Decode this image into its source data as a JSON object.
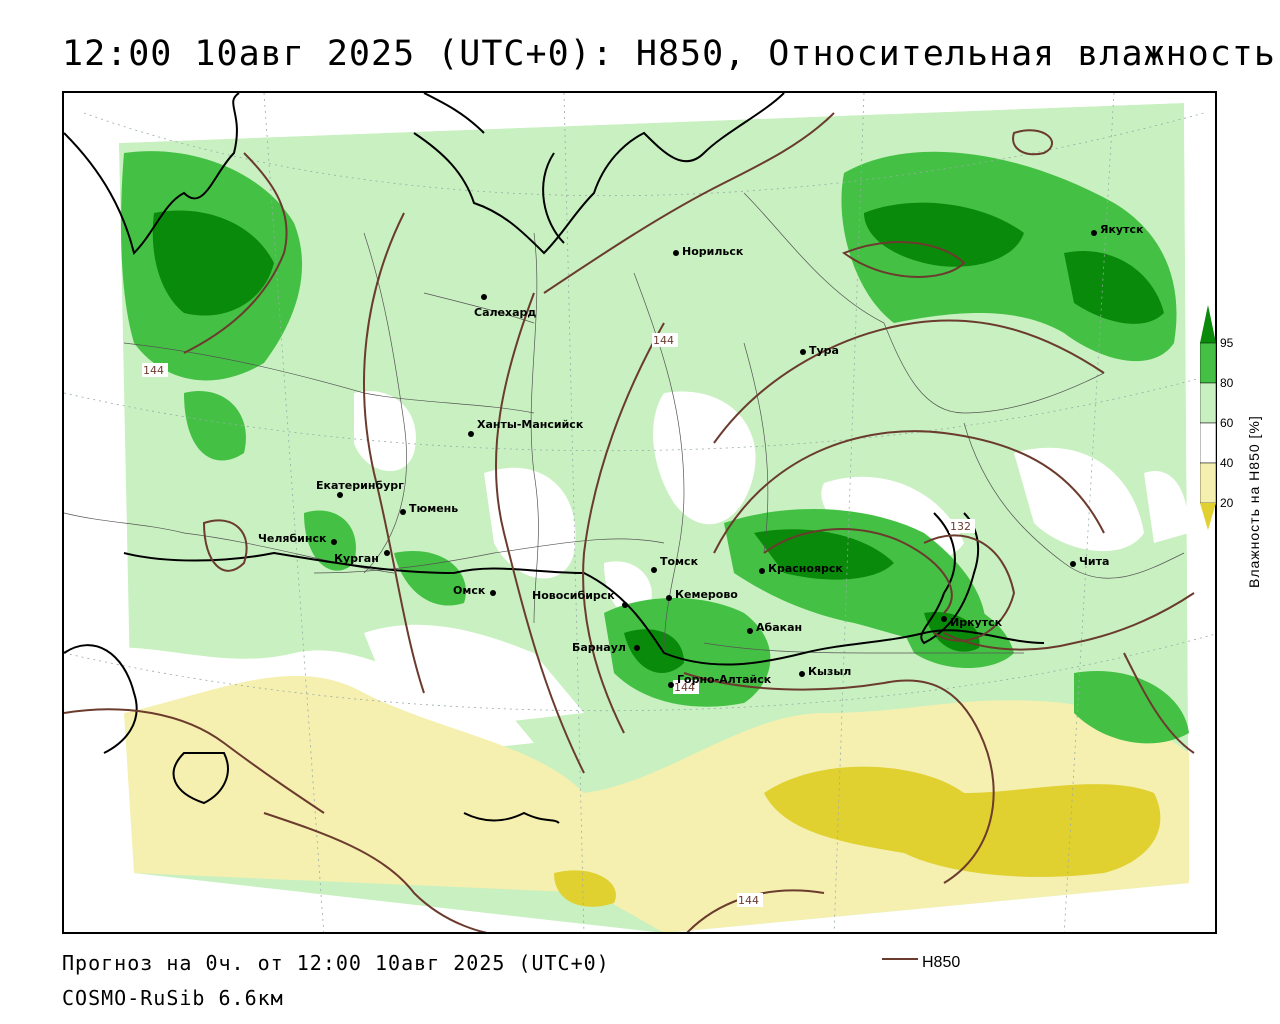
{
  "title": "12:00 10авг 2025 (UTC+0): H850, Относительная влажность",
  "footer": {
    "forecast": "Прогноз на 0ч. от 12:00 10авг 2025 (UTC+0)",
    "model": "COSMO-RuSib 6.6км"
  },
  "legend": {
    "line_label": "H850",
    "line_color": "#6b3b2e"
  },
  "colorbar": {
    "title": "Влажность на H850 [%]",
    "ticks": [
      "95",
      "80",
      "60",
      "40",
      "20"
    ],
    "colors": {
      "c95": "#0a8a0a",
      "c80": "#44c144",
      "c60": "#c8f0c0",
      "c40": "#ffffff",
      "c20": "#f5f0b0",
      "c0": "#e0d030"
    }
  },
  "cities": [
    {
      "name": "Норильск"
    },
    {
      "name": "Якутск"
    },
    {
      "name": "Салехард"
    },
    {
      "name": "Тура"
    },
    {
      "name": "Ханты-Мансийск"
    },
    {
      "name": "Екатеринбург"
    },
    {
      "name": "Тюмень"
    },
    {
      "name": "Челябинск"
    },
    {
      "name": "Курган"
    },
    {
      "name": "Омск"
    },
    {
      "name": "Новосибирск"
    },
    {
      "name": "Томск"
    },
    {
      "name": "Кемерово"
    },
    {
      "name": "Красноярск"
    },
    {
      "name": "Абакан"
    },
    {
      "name": "Барнаул"
    },
    {
      "name": "Горно-Алтайск"
    },
    {
      "name": "Кызыл"
    },
    {
      "name": "Иркутск"
    },
    {
      "name": "Чита"
    }
  ],
  "isolines": {
    "l144a": "144",
    "l144b": "144",
    "l132": "132",
    "l144c": "144",
    "l144d": "144"
  }
}
